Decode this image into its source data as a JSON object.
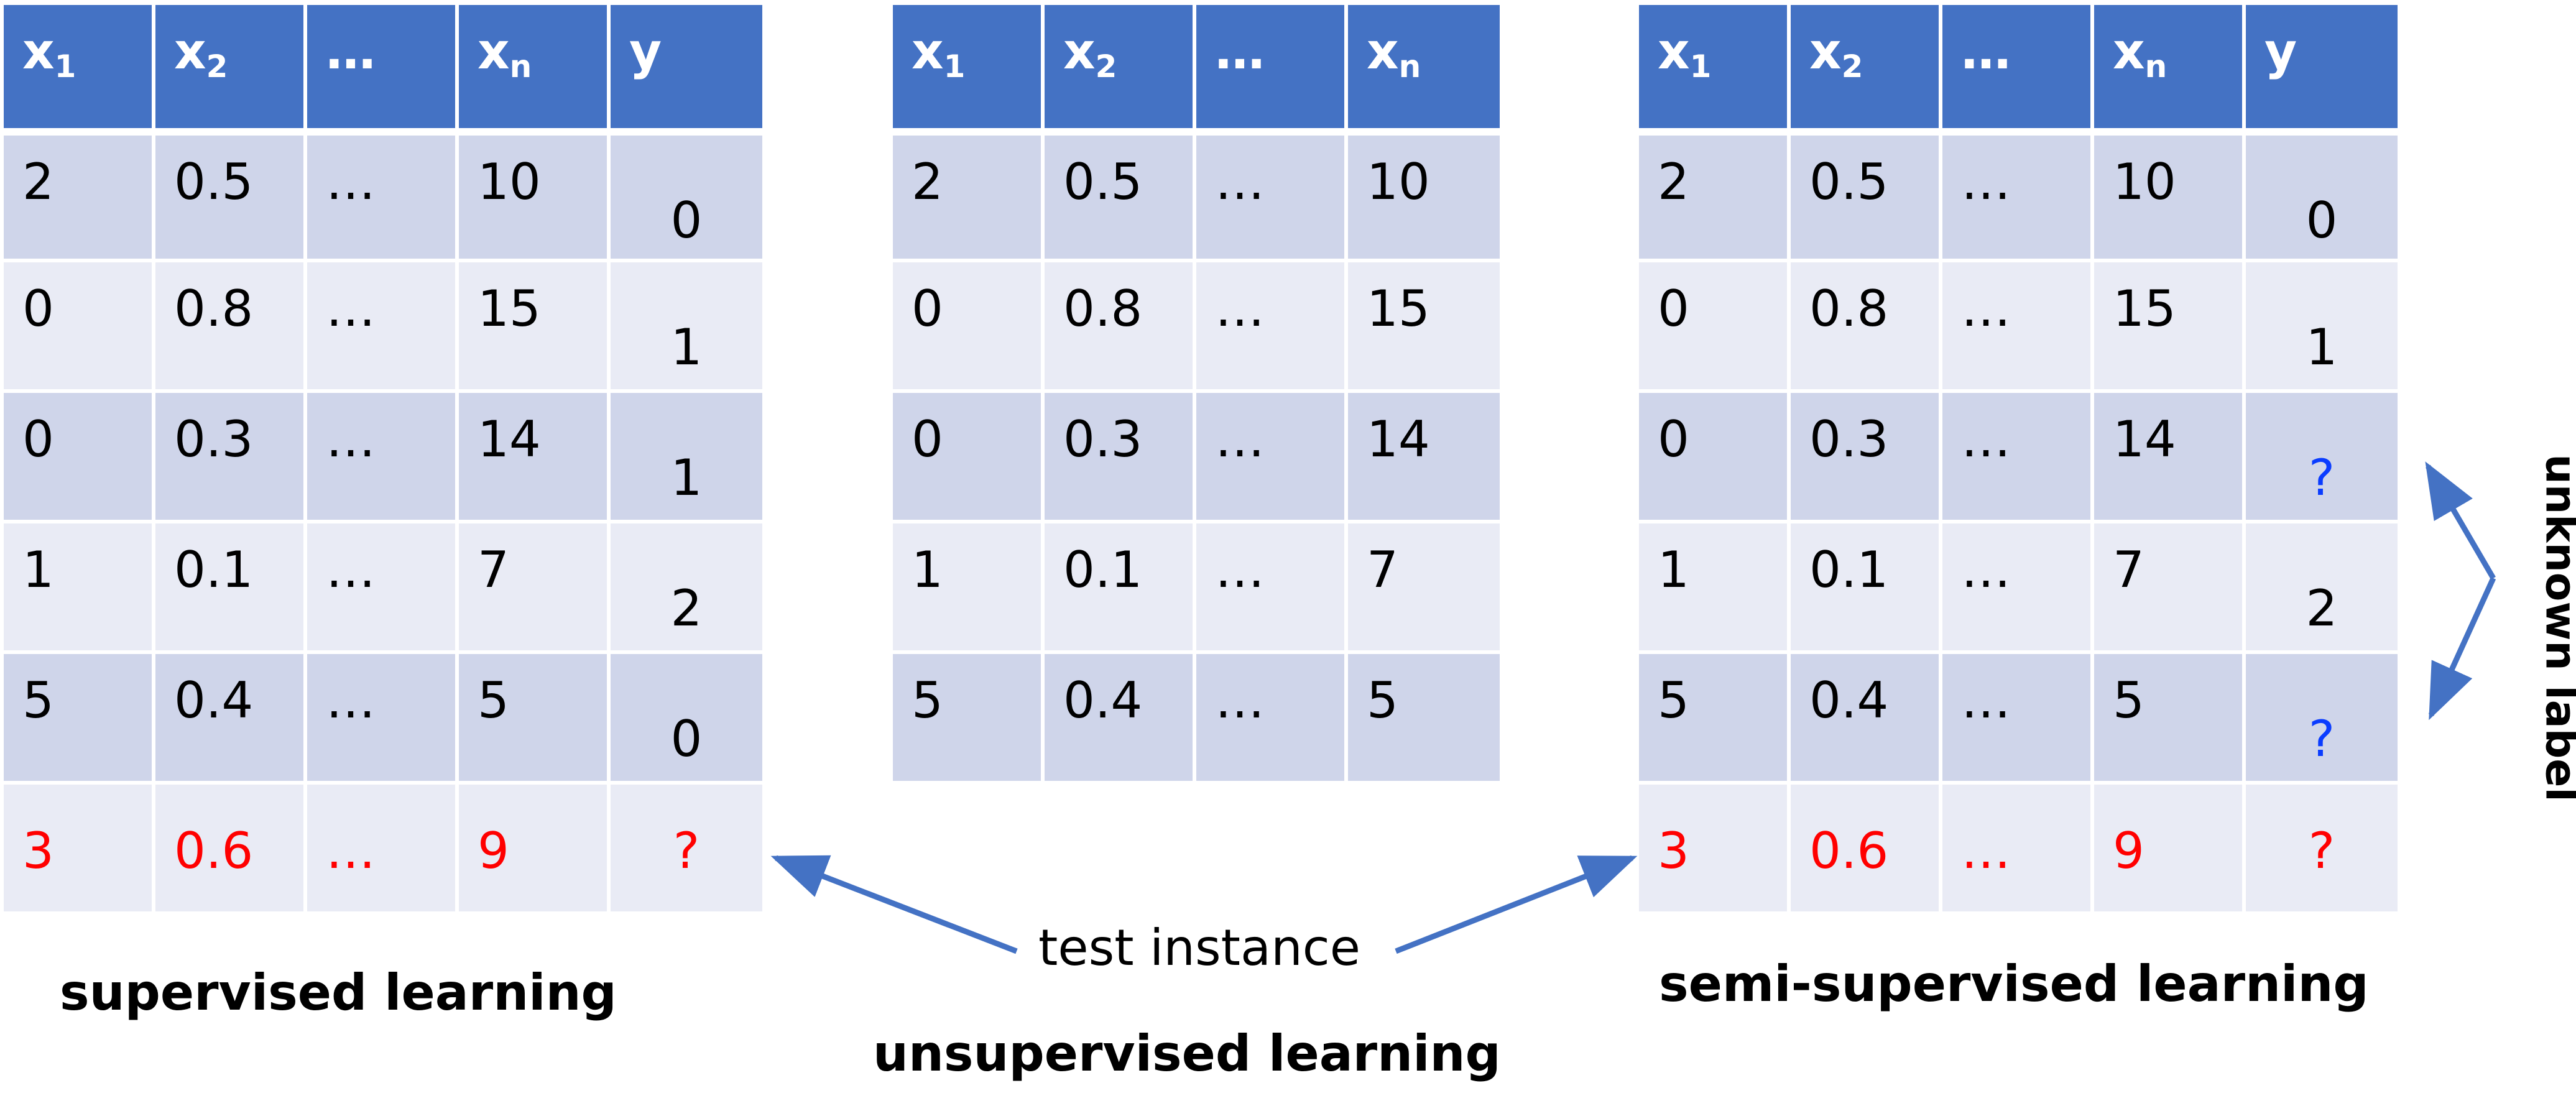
{
  "tables": {
    "supervised": {
      "headers": [
        {
          "base": "x",
          "sub": "1"
        },
        {
          "base": "x",
          "sub": "2"
        },
        {
          "base": "…",
          "sub": ""
        },
        {
          "base": "x",
          "sub": "n"
        },
        {
          "base": "y",
          "sub": ""
        }
      ],
      "rows": [
        {
          "cells": [
            "2",
            "0.5",
            "…",
            "10",
            "0"
          ],
          "kind": "train"
        },
        {
          "cells": [
            "0",
            "0.8",
            "…",
            "15",
            "1"
          ],
          "kind": "train"
        },
        {
          "cells": [
            "0",
            "0.3",
            "…",
            "14",
            "1"
          ],
          "kind": "train"
        },
        {
          "cells": [
            "1",
            "0.1",
            "…",
            "7",
            "2"
          ],
          "kind": "train"
        },
        {
          "cells": [
            "5",
            "0.4",
            "…",
            "5",
            "0"
          ],
          "kind": "train"
        },
        {
          "cells": [
            "3",
            "0.6",
            "…",
            "9",
            "?"
          ],
          "kind": "test"
        }
      ]
    },
    "unsupervised": {
      "headers": [
        {
          "base": "x",
          "sub": "1"
        },
        {
          "base": "x",
          "sub": "2"
        },
        {
          "base": "…",
          "sub": ""
        },
        {
          "base": "x",
          "sub": "n"
        }
      ],
      "rows": [
        {
          "cells": [
            "2",
            "0.5",
            "…",
            "10"
          ],
          "kind": "train"
        },
        {
          "cells": [
            "0",
            "0.8",
            "…",
            "15"
          ],
          "kind": "train"
        },
        {
          "cells": [
            "0",
            "0.3",
            "…",
            "14"
          ],
          "kind": "train"
        },
        {
          "cells": [
            "1",
            "0.1",
            "…",
            "7"
          ],
          "kind": "train"
        },
        {
          "cells": [
            "5",
            "0.4",
            "…",
            "5"
          ],
          "kind": "train"
        }
      ]
    },
    "semi": {
      "headers": [
        {
          "base": "x",
          "sub": "1"
        },
        {
          "base": "x",
          "sub": "2"
        },
        {
          "base": "…",
          "sub": ""
        },
        {
          "base": "x",
          "sub": "n"
        },
        {
          "base": "y",
          "sub": ""
        }
      ],
      "rows": [
        {
          "cells": [
            "2",
            "0.5",
            "…",
            "10",
            "0"
          ],
          "kind": "train"
        },
        {
          "cells": [
            "0",
            "0.8",
            "…",
            "15",
            "1"
          ],
          "kind": "train"
        },
        {
          "cells": [
            "0",
            "0.3",
            "…",
            "14",
            "?"
          ],
          "kind": "unknown"
        },
        {
          "cells": [
            "1",
            "0.1",
            "…",
            "7",
            "2"
          ],
          "kind": "train"
        },
        {
          "cells": [
            "5",
            "0.4",
            "…",
            "5",
            "?"
          ],
          "kind": "unknown"
        },
        {
          "cells": [
            "3",
            "0.6",
            "…",
            "9",
            "?"
          ],
          "kind": "test"
        }
      ]
    }
  },
  "captions": {
    "supervised": "supervised learning",
    "unsupervised": "unsupervised learning",
    "semi": "semi-supervised learning"
  },
  "annotations": {
    "test_instance": "test instance",
    "unknown_label": "unknown label"
  },
  "colors": {
    "header_bg": "#4472c4",
    "row_dark": "#cfd5ea",
    "row_light": "#e9ebf5",
    "test_text": "#ff0000",
    "unknown_text": "#0a3cff",
    "arrow": "#4472c4"
  }
}
